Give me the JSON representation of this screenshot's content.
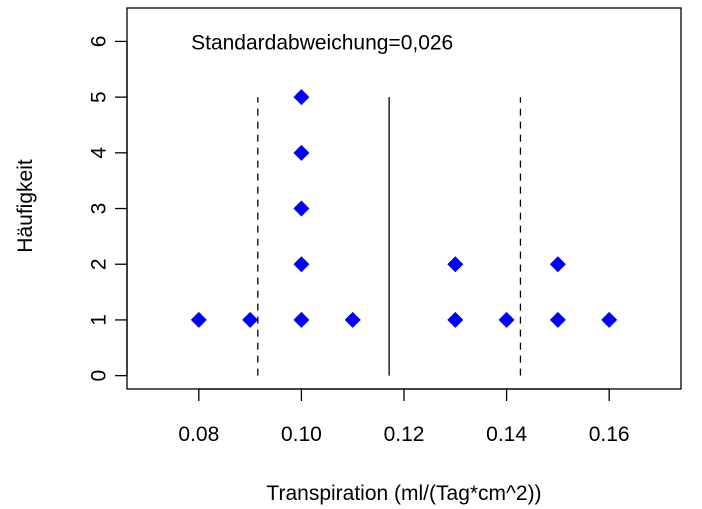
{
  "chart_data": {
    "type": "scatter",
    "title": "",
    "xlabel": "Transpiration (ml/(Tag*cm^2))",
    "ylabel": "Häufigkeit",
    "xlim": [
      0.066,
      0.174
    ],
    "ylim": [
      -0.24,
      6.6
    ],
    "x_ticks": [
      0.08,
      0.1,
      0.12,
      0.14,
      0.16
    ],
    "x_tick_labels": [
      "0.08",
      "0.10",
      "0.12",
      "0.14",
      "0.16"
    ],
    "y_ticks": [
      0,
      1,
      2,
      3,
      4,
      5,
      6
    ],
    "y_tick_labels": [
      "0",
      "1",
      "2",
      "3",
      "4",
      "5",
      "6"
    ],
    "grid": false,
    "point_color": "#0000ff",
    "marker": "diamond",
    "points": [
      {
        "x": 0.08,
        "y": 1
      },
      {
        "x": 0.09,
        "y": 1
      },
      {
        "x": 0.1,
        "y": 1
      },
      {
        "x": 0.1,
        "y": 2
      },
      {
        "x": 0.1,
        "y": 3
      },
      {
        "x": 0.1,
        "y": 4
      },
      {
        "x": 0.1,
        "y": 5
      },
      {
        "x": 0.11,
        "y": 1
      },
      {
        "x": 0.13,
        "y": 1
      },
      {
        "x": 0.13,
        "y": 2
      },
      {
        "x": 0.14,
        "y": 1
      },
      {
        "x": 0.15,
        "y": 1
      },
      {
        "x": 0.15,
        "y": 2
      },
      {
        "x": 0.16,
        "y": 1
      }
    ],
    "mean_line": {
      "x": 0.1171,
      "y_from": 0,
      "y_to": 5,
      "style": "solid"
    },
    "sd_lines": [
      {
        "x": 0.0915,
        "y_from": 0,
        "y_to": 5,
        "style": "dashed"
      },
      {
        "x": 0.1427,
        "y_from": 0,
        "y_to": 5,
        "style": "dashed"
      }
    ],
    "annotation": {
      "text": "Standardabweichung=0,026",
      "x": 0.0785,
      "y": 6
    }
  }
}
